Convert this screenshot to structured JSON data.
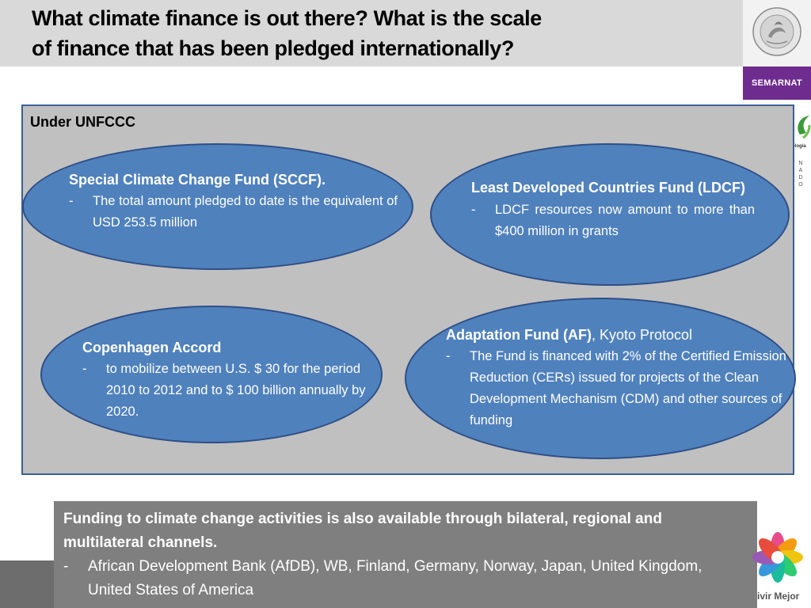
{
  "slide": {
    "title_line1": "What climate finance is out there? What is the scale",
    "title_line2": "of finance that has been pledged internationally?"
  },
  "branding": {
    "seal_icon": "mexico-seal-icon",
    "seal_text": "ESTADOS UNIDOS MEXICANOS",
    "semarnat_label": "SEMARNAT",
    "side_fragment_text": "ología",
    "side_fragment_letters": "N A D O",
    "flower_icon": "multicolor-flower-logo-icon",
    "vivir_text": "ivir Mejor"
  },
  "panel": {
    "heading": "Under UNFCCC",
    "sccf": {
      "title": "Special Climate Change Fund (SCCF).",
      "bullet_dash": "-",
      "bullet": "The total amount pledged to date is the equivalent of USD 253.5 million"
    },
    "ldcf": {
      "title": "Least Developed Countries Fund (LDCF)",
      "bullet_dash": "-",
      "bullet": "LDCF resources now amount to more than $400 million in grants"
    },
    "copenhagen": {
      "title": "Copenhagen Accord",
      "bullet_dash": "-",
      "bullet": "to mobilize between U.S. $ 30 for the period 2010 to 2012 and to $ 100 billion annually by 2020."
    },
    "af": {
      "title_bold": "Adaptation Fund (AF)",
      "title_rest": ", Kyoto Protocol",
      "bullet_dash": "-",
      "bullet": "The Fund is financed with 2% of the Certified Emission Reduction (CERs) issued for projects of the Clean Development Mechanism (CDM) and other sources of funding"
    }
  },
  "bottom": {
    "lead": "Funding to climate change activities is also available through bilateral, regional and multilateral channels.",
    "bullet_dash": "-",
    "bullet": "African Development Bank (AfDB), WB, Finland, Germany, Norway, Japan, United Kingdom, United States of America"
  },
  "colors": {
    "ellipse_fill": "#4f81bd",
    "ellipse_border": "#2f4f86",
    "panel_bg": "#c0c0c0",
    "semarnat_purple": "#6f2c8f",
    "bottom_box": "#7f7f7f"
  }
}
